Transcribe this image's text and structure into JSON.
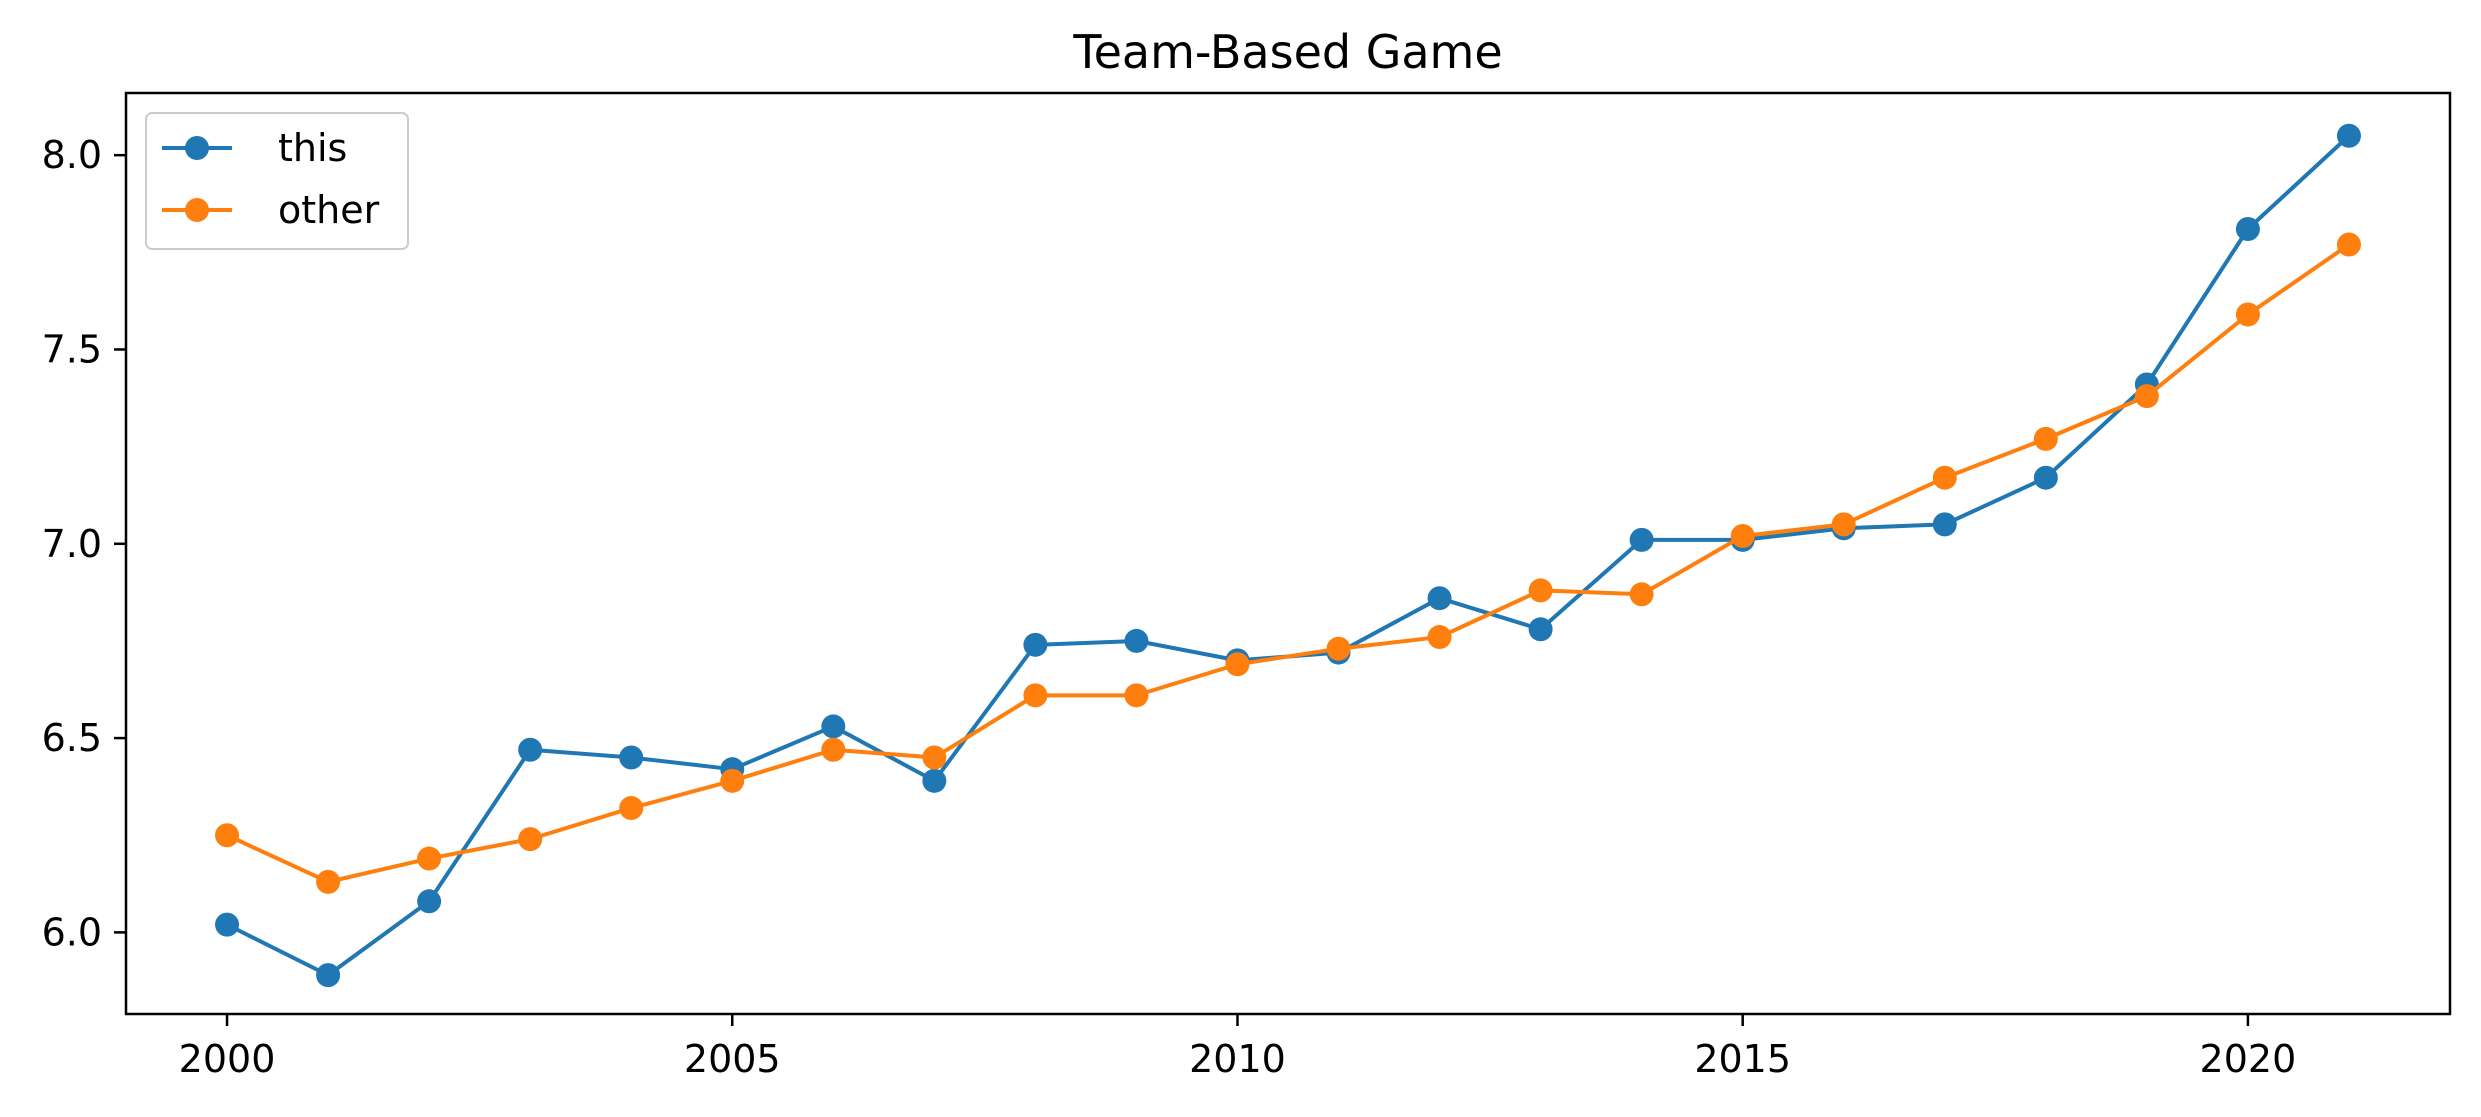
{
  "chart_data": {
    "type": "line",
    "title": "Team-Based Game",
    "xlabel": "",
    "ylabel": "",
    "x": [
      2000,
      2001,
      2002,
      2003,
      2004,
      2005,
      2006,
      2007,
      2008,
      2009,
      2010,
      2011,
      2012,
      2013,
      2014,
      2015,
      2016,
      2017,
      2018,
      2019,
      2020,
      2021
    ],
    "series": [
      {
        "name": "this",
        "color": "#1f77b4",
        "values": [
          6.02,
          5.89,
          6.08,
          6.47,
          6.45,
          6.42,
          6.53,
          6.39,
          6.74,
          6.75,
          6.7,
          6.72,
          6.86,
          6.78,
          7.01,
          7.01,
          7.04,
          7.05,
          7.17,
          7.41,
          7.81,
          8.05
        ]
      },
      {
        "name": "other",
        "color": "#ff7f0e",
        "values": [
          6.25,
          6.13,
          6.19,
          6.24,
          6.32,
          6.39,
          6.47,
          6.45,
          6.61,
          6.61,
          6.69,
          6.73,
          6.76,
          6.88,
          6.87,
          7.02,
          7.05,
          7.17,
          7.27,
          7.38,
          7.59,
          7.77
        ]
      }
    ],
    "xlim": [
      1999,
      2022
    ],
    "ylim": [
      5.79,
      8.16
    ],
    "xticks": [
      2000,
      2005,
      2010,
      2015,
      2020
    ],
    "yticks": [
      "6.0",
      "6.5",
      "7.0",
      "7.5",
      "8.0"
    ],
    "grid": false,
    "legend_position": "upper-left"
  }
}
